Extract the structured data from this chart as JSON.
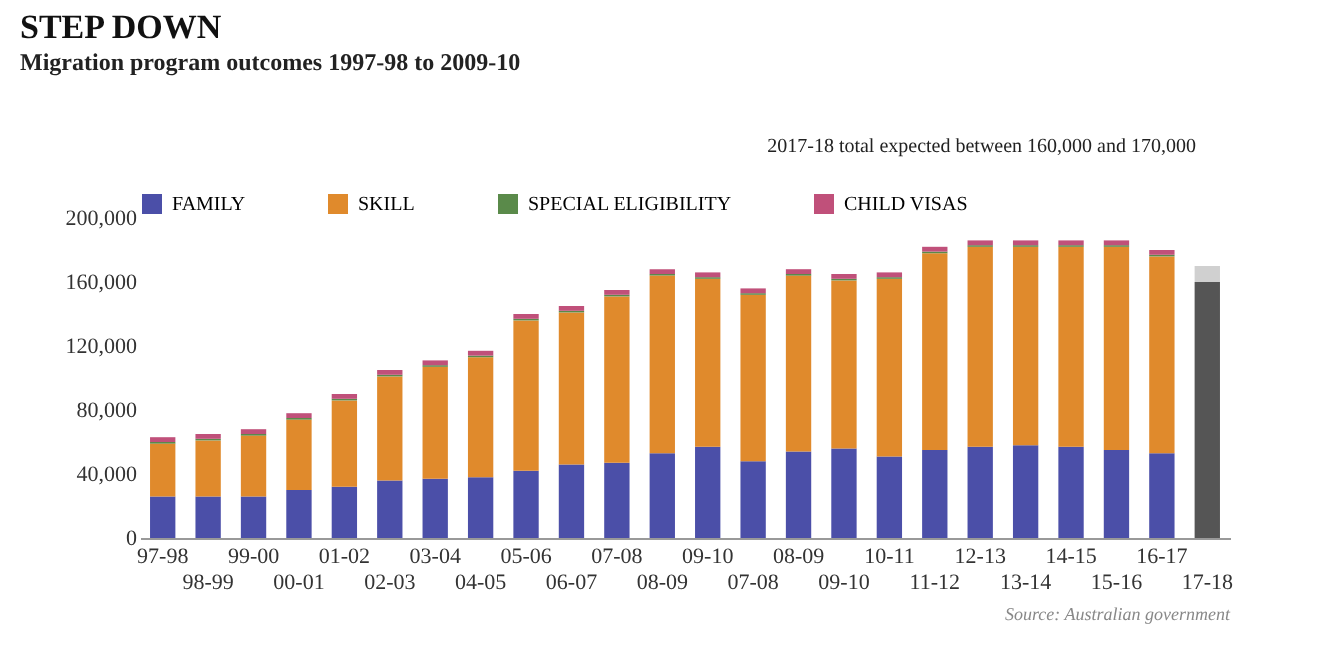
{
  "chart_data": {
    "type": "bar",
    "title": "STEP DOWN",
    "subtitle": "Migration program outcomes 1997-98 to 2009-10",
    "categories": [
      "97-98",
      "98-99",
      "99-00",
      "00-01",
      "01-02",
      "02-03",
      "03-04",
      "04-05",
      "05-06",
      "06-07",
      "07-08",
      "08-09",
      "09-10",
      "07-08",
      "08-09",
      "09-10",
      "10-11",
      "11-12",
      "12-13",
      "13-14",
      "14-15",
      "15-16",
      "16-17",
      "17-18"
    ],
    "stacked": true,
    "series": [
      {
        "name": "FAMILY",
        "color": "#4b4fa8",
        "values": [
          26000,
          26000,
          26000,
          30000,
          32000,
          36000,
          37000,
          38000,
          42000,
          46000,
          47000,
          53000,
          57000,
          48000,
          54000,
          56000,
          51000,
          55000,
          57000,
          58000,
          57000,
          55000,
          53000,
          null
        ]
      },
      {
        "name": "SKILL",
        "color": "#e08a2c",
        "values": [
          33000,
          35000,
          38000,
          44000,
          54000,
          65000,
          70000,
          75000,
          94000,
          95000,
          104000,
          111000,
          105000,
          104000,
          110000,
          105000,
          111000,
          123000,
          125000,
          124000,
          125000,
          127000,
          123000,
          null
        ]
      },
      {
        "name": "SPECIAL ELIGIBILITY",
        "color": "#5a8a4a",
        "values": [
          1000,
          1000,
          1000,
          1000,
          1000,
          1000,
          1000,
          1000,
          1000,
          1000,
          1000,
          1000,
          1000,
          1000,
          1000,
          1000,
          1000,
          1000,
          1000,
          1000,
          1000,
          1000,
          1000,
          null
        ]
      },
      {
        "name": "CHILD VISAS",
        "color": "#c0507a",
        "values": [
          3000,
          3000,
          3000,
          3000,
          3000,
          3000,
          3000,
          3000,
          3000,
          3000,
          3000,
          3000,
          3000,
          3000,
          3000,
          3000,
          3000,
          3000,
          3000,
          3000,
          3000,
          3000,
          3000,
          null
        ]
      },
      {
        "color": "#555555",
        "values": [
          null,
          null,
          null,
          null,
          null,
          null,
          null,
          null,
          null,
          null,
          null,
          null,
          null,
          null,
          null,
          null,
          null,
          null,
          null,
          null,
          null,
          null,
          null,
          160000
        ]
      },
      {
        "color": "#d0d0d0",
        "values": [
          null,
          null,
          null,
          null,
          null,
          null,
          null,
          null,
          null,
          null,
          null,
          null,
          null,
          null,
          null,
          null,
          null,
          null,
          null,
          null,
          null,
          null,
          null,
          10000
        ]
      }
    ],
    "ylim": [
      0,
      200000
    ],
    "yticks": [
      {
        "value": 0,
        "label": "0"
      },
      {
        "value": 40000,
        "label": "40,000"
      },
      {
        "value": 80000,
        "label": "80,000"
      },
      {
        "value": 120000,
        "label": "120,000"
      },
      {
        "value": 160000,
        "label": "160,000"
      },
      {
        "value": 200000,
        "label": "200,000"
      }
    ],
    "legend": "top",
    "annotations": [
      "2017-18 total expected between 160,000 and 170,000",
      "Source: Australian government"
    ]
  }
}
